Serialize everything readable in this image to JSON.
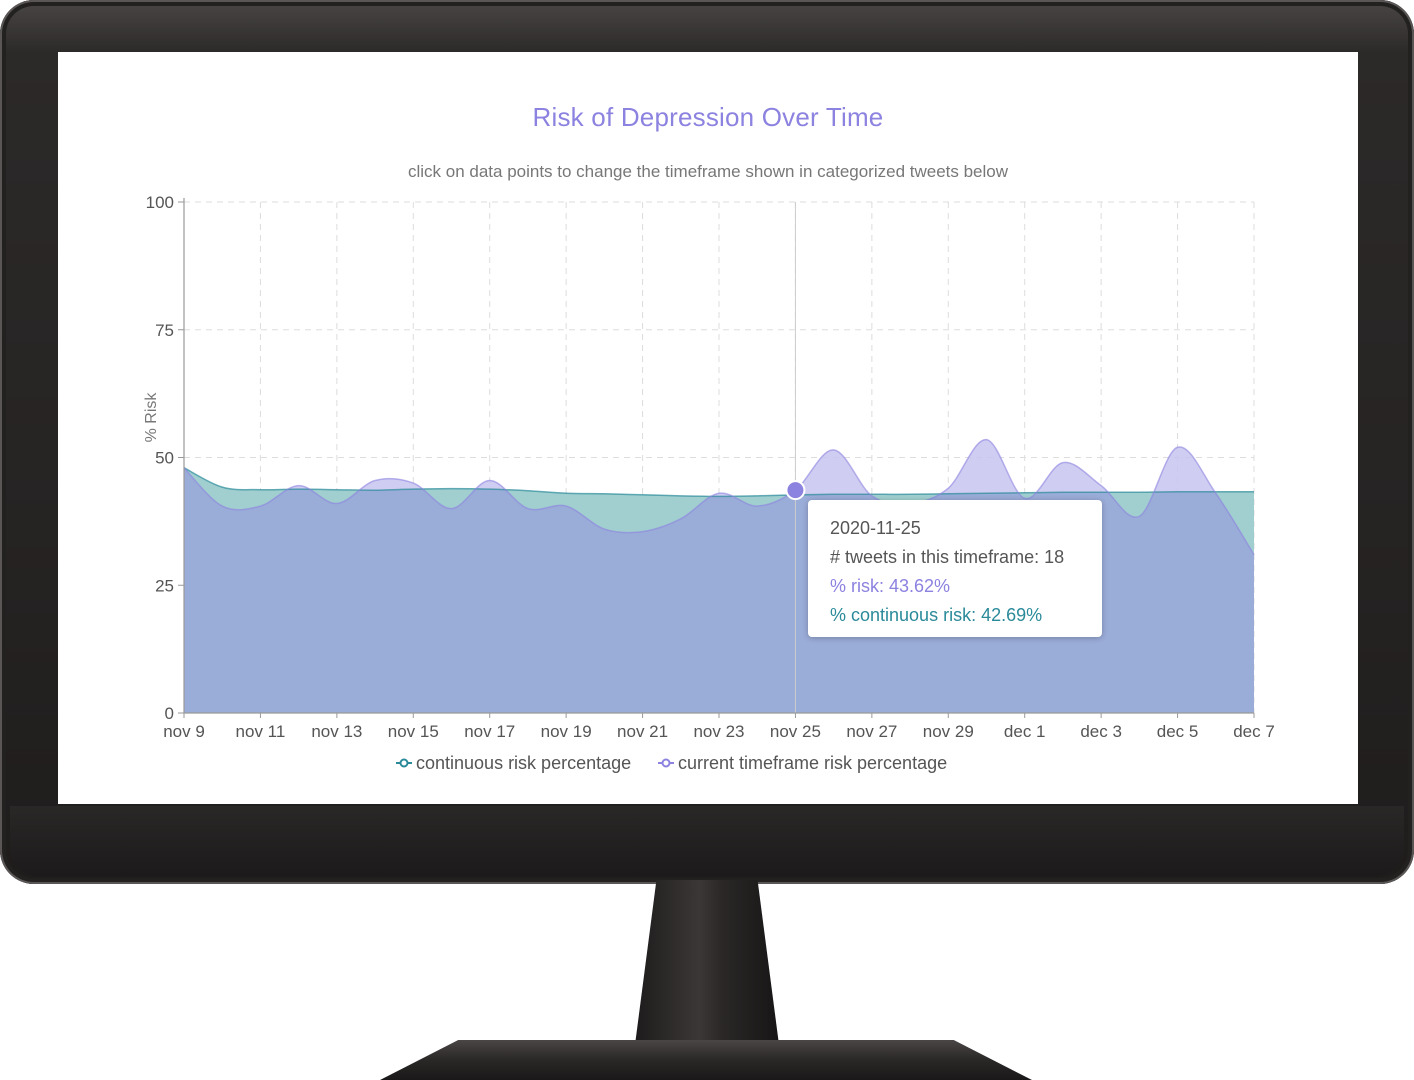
{
  "colors": {
    "current": "#8c82e0",
    "continuous": "#2a8a9a",
    "current_fill": "#c8c4f0",
    "continuous_fill": "#9ccccc",
    "overlap_fill": "#9aacd8"
  },
  "chart_data": {
    "type": "area",
    "title": "Risk of Depression Over Time",
    "subtitle": "click on data points to change the timeframe shown in categorized tweets below",
    "ylabel": "% Risk",
    "xlabel": "",
    "ylim": [
      0,
      100
    ],
    "yticks": [
      0,
      25,
      50,
      75,
      100
    ],
    "xticks": [
      "nov 9",
      "nov 11",
      "nov 13",
      "nov 15",
      "nov 17",
      "nov 19",
      "nov 21",
      "nov 23",
      "nov 25",
      "nov 27",
      "nov 29",
      "dec 1",
      "dec 3",
      "dec 5",
      "dec 7"
    ],
    "grid": true,
    "legend_position": "bottom",
    "x": [
      "2020-11-09",
      "2020-11-10",
      "2020-11-11",
      "2020-11-12",
      "2020-11-13",
      "2020-11-14",
      "2020-11-15",
      "2020-11-16",
      "2020-11-17",
      "2020-11-18",
      "2020-11-19",
      "2020-11-20",
      "2020-11-21",
      "2020-11-22",
      "2020-11-23",
      "2020-11-24",
      "2020-11-25",
      "2020-11-26",
      "2020-11-27",
      "2020-11-28",
      "2020-11-29",
      "2020-11-30",
      "2020-12-01",
      "2020-12-02",
      "2020-12-03",
      "2020-12-04",
      "2020-12-05",
      "2020-12-06",
      "2020-12-07"
    ],
    "series": [
      {
        "name": "continuous risk percentage",
        "values": [
          48,
          44.2,
          43.7,
          43.8,
          43.7,
          43.6,
          43.8,
          43.9,
          43.8,
          43.5,
          43,
          42.9,
          42.7,
          42.5,
          42.4,
          42.5,
          42.69,
          42.8,
          42.8,
          42.8,
          42.9,
          43,
          43.1,
          43.2,
          43.2,
          43.2,
          43.3,
          43.3,
          43.3
        ]
      },
      {
        "name": "current timeframe risk percentage",
        "values": [
          48,
          40.5,
          40.5,
          44.5,
          41,
          45.5,
          45,
          40,
          45.5,
          40,
          40.5,
          36,
          35.5,
          38,
          43,
          40.5,
          43.62,
          51.5,
          42.5,
          41,
          44,
          53.5,
          42,
          49,
          44.5,
          38.5,
          52,
          43,
          31
        ]
      }
    ]
  },
  "tooltip": {
    "date": "2020-11-25",
    "tweets": "# tweets in this timeframe: 18",
    "risk": "% risk: 43.62%",
    "continuous_risk": "% continuous risk: 42.69%"
  }
}
